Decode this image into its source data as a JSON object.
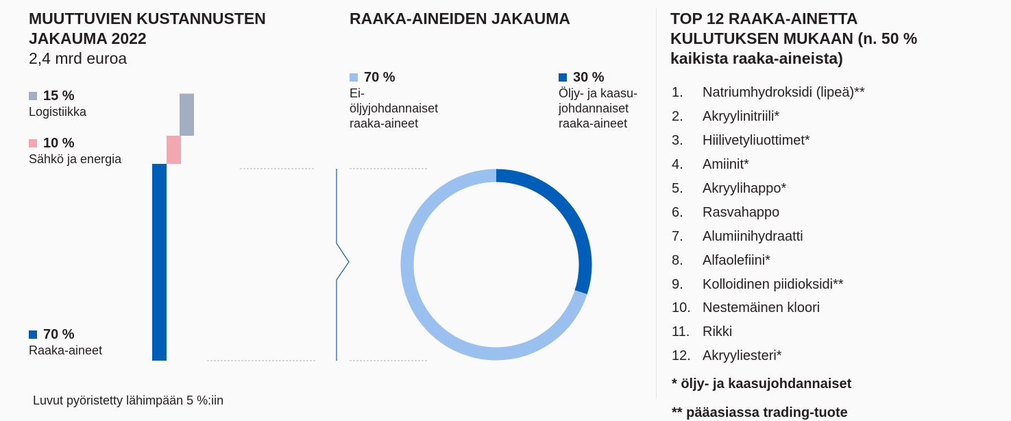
{
  "left_panel": {
    "title_line1": "MUUTTUVIEN KUSTANNUSTEN",
    "title_line2": "JAKAUMA 2022",
    "subtitle": "2,4 mrd euroa",
    "footnote": "Luvut pyöristetty lähimpään 5 %:iin"
  },
  "middle_panel": {
    "title": "RAAKA-AINEIDEN JAKAUMA"
  },
  "right_panel": {
    "title_line1": "TOP 12 RAAKA-AINETTA",
    "title_line2": "KULUTUKSEN MUKAAN (n. 50 %",
    "title_line3": "kaikista raaka-aineista)",
    "items": [
      {
        "num": "1.",
        "name": "Natriumhydroksidi (lipeä)**"
      },
      {
        "num": "2.",
        "name": "Akryylinitriili*"
      },
      {
        "num": "3.",
        "name": "Hiilivetyliuottimet*"
      },
      {
        "num": "4.",
        "name": "Amiinit*"
      },
      {
        "num": "5.",
        "name": "Akryylihappo*"
      },
      {
        "num": "6.",
        "name": "Rasvahappo"
      },
      {
        "num": "7.",
        "name": "Alumiinihydraatti"
      },
      {
        "num": "8.",
        "name": "Alfaolefiini*"
      },
      {
        "num": "9.",
        "name": "Kolloidinen piidioksidi**"
      },
      {
        "num": "10.",
        "name": "Nestemäinen kloori"
      },
      {
        "num": "11.",
        "name": "Rikki"
      },
      {
        "num": "12.",
        "name": "Akryyliesteri*"
      }
    ],
    "note1": "* öljy- ja kaasujohdannaiset",
    "note2": "** pääasiassa trading-tuote"
  },
  "chart_data": [
    {
      "type": "bar",
      "subtype": "stacked-waterfall",
      "categories": [
        "Raaka-aineet",
        "Sähkö ja energia",
        "Logistiikka"
      ],
      "values": [
        70,
        10,
        15
      ],
      "value_labels": [
        "70 %",
        "10 %",
        "15 %"
      ],
      "colors": [
        "#005eb8",
        "#f4a7af",
        "#a3aec0"
      ],
      "unit": "%"
    },
    {
      "type": "pie",
      "subtype": "donut",
      "categories": [
        "Öljy- ja kaasujohdannaiset raaka-aineet",
        "Ei-öljyjohdannaiset raaka-aineet"
      ],
      "values": [
        30,
        70
      ],
      "value_labels": [
        "30 %",
        "70 %"
      ],
      "colors": [
        "#005eb8",
        "#99c0ee"
      ],
      "legend": [
        {
          "value": "30 %",
          "line1": "Öljy- ja kaasu-",
          "line2": "johdannaiset",
          "line3": "raaka-aineet"
        },
        {
          "value": "70 %",
          "line1": "Ei-",
          "line2": "öljyjohdannaiset",
          "line3": "raaka-aineet"
        }
      ]
    }
  ]
}
